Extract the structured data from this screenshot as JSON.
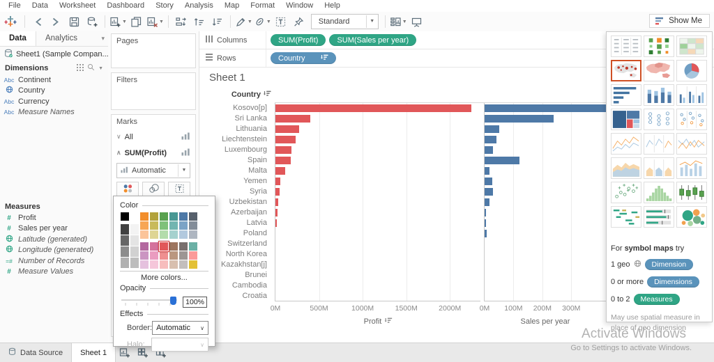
{
  "menu": {
    "items": [
      "File",
      "Data",
      "Worksheet",
      "Dashboard",
      "Story",
      "Analysis",
      "Map",
      "Format",
      "Window",
      "Help"
    ]
  },
  "toolbar": {
    "view_mode": "Standard",
    "show_me_label": "Show Me",
    "groups": [
      {
        "items": [
          {
            "icon": "undo-icon"
          },
          {
            "icon": "redo-icon"
          },
          {
            "icon": "save-icon"
          },
          {
            "icon": "add-data-icon"
          }
        ]
      },
      {
        "items": [
          {
            "icon": "new-worksheet-icon",
            "caret": true
          },
          {
            "icon": "duplicate-icon"
          },
          {
            "icon": "clear-sheet-icon",
            "caret": true
          }
        ]
      },
      {
        "items": [
          {
            "icon": "swap-rows-columns-icon"
          },
          {
            "icon": "sort-ascending-icon"
          },
          {
            "icon": "sort-descending-icon"
          }
        ]
      },
      {
        "items": [
          {
            "icon": "highlight-icon",
            "caret": true
          },
          {
            "icon": "format-icon",
            "caret": true
          },
          {
            "icon": "show-mark-labels-icon"
          },
          {
            "icon": "fix-axes-icon"
          }
        ]
      }
    ],
    "right_items": [
      {
        "icon": "show-hide-cards-icon",
        "caret": true
      },
      {
        "icon": "presentation-mode-icon"
      }
    ]
  },
  "data_pane": {
    "tabs": [
      {
        "label": "Data",
        "active": true
      },
      {
        "label": "Analytics",
        "active": false
      }
    ],
    "connection": "Sheet1 (Sample Compan...",
    "dimensions": {
      "header": "Dimensions",
      "fields": [
        {
          "icon": "abc",
          "label": "Continent",
          "generated": false
        },
        {
          "icon": "globe-blue",
          "label": "Country",
          "generated": false
        },
        {
          "icon": "abc",
          "label": "Currency",
          "generated": false
        },
        {
          "icon": "abc",
          "label": "Measure Names",
          "generated": true
        }
      ]
    },
    "measures": {
      "header": "Measures",
      "fields": [
        {
          "icon": "hash",
          "label": "Profit",
          "generated": false
        },
        {
          "icon": "hash",
          "label": "Sales per year",
          "generated": false
        },
        {
          "icon": "globe-green",
          "label": "Latitude (generated)",
          "generated": true
        },
        {
          "icon": "globe-green",
          "label": "Longitude (generated)",
          "generated": true
        },
        {
          "icon": "eq-hash",
          "label": "Number of Records",
          "generated": true
        },
        {
          "icon": "hash",
          "label": "Measure Values",
          "generated": true
        }
      ]
    }
  },
  "shelves": {
    "pages_label": "Pages",
    "filters_label": "Filters",
    "columns_label": "Columns",
    "rows_label": "Rows",
    "column_pills": [
      {
        "label": "SUM(Profit)",
        "type": "measure"
      },
      {
        "label": "SUM(Sales per year)",
        "type": "measure"
      }
    ],
    "row_pills": [
      {
        "label": "Country",
        "type": "dimension",
        "sorted": true
      }
    ]
  },
  "marks": {
    "header": "Marks",
    "rows": [
      {
        "label": "All",
        "state": "collapsed",
        "bold": false
      },
      {
        "label": "SUM(Profit)",
        "state": "expanded",
        "bold": true
      }
    ],
    "mark_type": "Automatic",
    "buttons": [
      {
        "label": "Color",
        "icon": "color-dots-icon"
      },
      {
        "label": "Size",
        "icon": "size-circles-icon"
      },
      {
        "label": "Label",
        "icon": "label-t-icon"
      }
    ]
  },
  "color_dialog": {
    "title": "Color",
    "more_colors": "More colors...",
    "opacity_label": "Opacity",
    "opacity_value": "100%",
    "opacity_percent": 100,
    "effects_label": "Effects",
    "border_label": "Border:",
    "border_value": "Automatic",
    "halo_label": "Halo:",
    "selected_color": "#e15759",
    "palette": {
      "gray_columns": [
        [
          "#000000",
          "#414141",
          "#666666",
          "#8c8c8c",
          "#b1b1b1"
        ],
        [
          "#ffffff",
          "#f3f3f3",
          "#e4e4e4",
          "#d1d1d1",
          "#bdbdbd"
        ]
      ],
      "color_columns": [
        {
          "top": [
            "#f28e2b",
            "#f7a654",
            "#fbc49a"
          ],
          "bottom": [
            "#b3689f",
            "#cb95c2",
            "#e5c1de"
          ]
        },
        {
          "top": [
            "#b2a23c",
            "#c8ba5a",
            "#ded594"
          ],
          "bottom": [
            "#d4729c",
            "#ea9cc0",
            "#f5c6da"
          ]
        },
        {
          "top": [
            "#59a14f",
            "#7fc17a",
            "#b3dcab"
          ],
          "bottom": [
            "#e15759",
            "#ef8f90",
            "#f7bdbd"
          ],
          "selected_bottom": 0
        },
        {
          "top": [
            "#499894",
            "#72b5b1",
            "#a5d1ce"
          ],
          "bottom": [
            "#9d7660",
            "#ba9780",
            "#d8bfae"
          ]
        },
        {
          "top": [
            "#4e79a7",
            "#7ba3c6",
            "#b2c9de"
          ],
          "bottom": [
            "#79706e",
            "#9d9694",
            "#c3bebc"
          ]
        },
        {
          "top": [
            "#57606c",
            "#838d99",
            "#aeb6c1"
          ],
          "bottom": [
            "#6bb0a5",
            "#fb9a99",
            "#e3c135"
          ]
        }
      ]
    }
  },
  "sheet": {
    "title": "Sheet 1",
    "row_header": "Country"
  },
  "chart_data": {
    "type": "bar",
    "orientation": "horizontal",
    "categories": [
      "Kosovo[p]",
      "Sri Lanka",
      "Lithuania",
      "Liechtenstein",
      "Luxembourg",
      "Spain",
      "Malta",
      "Yemen",
      "Syria",
      "Uzbekistan",
      "Azerbaijan",
      "Latvia",
      "Poland",
      "Switzerland",
      "North Korea",
      "Kazakhstan[j]",
      "Brunei",
      "Cambodia",
      "Croatia"
    ],
    "units": "M",
    "grid": true,
    "series": [
      {
        "name": "Profit",
        "color": "#e15759",
        "axis": {
          "title": "Profit",
          "ticks": [
            "0M",
            "500M",
            "1000M",
            "1500M",
            "2000M"
          ],
          "tick_values": [
            0,
            500,
            1000,
            1500,
            2000
          ],
          "max": 2350,
          "sorted": true
        },
        "values": [
          2250,
          400,
          270,
          230,
          185,
          175,
          110,
          55,
          50,
          30,
          25,
          12,
          0,
          0,
          0,
          0,
          0,
          0,
          0
        ]
      },
      {
        "name": "Sales per year",
        "color": "#4e79a7",
        "axis": {
          "title": "Sales per year",
          "ticks": [
            "0M",
            "100M",
            "200M",
            "300M"
          ],
          "tick_values": [
            0,
            100,
            200,
            300
          ],
          "max": 420,
          "sorted": false
        },
        "values": [
          500,
          240,
          50,
          40,
          28,
          120,
          16,
          27,
          28,
          17,
          4,
          4,
          8,
          0,
          0,
          0,
          0,
          0,
          0
        ]
      }
    ]
  },
  "show_me": {
    "thumbnails": [
      {
        "name": "text-table"
      },
      {
        "name": "heat-map"
      },
      {
        "name": "highlight-table"
      },
      {
        "name": "symbol-map",
        "selected": true
      },
      {
        "name": "filled-map"
      },
      {
        "name": "pie-chart"
      },
      {
        "name": "horizontal-bars"
      },
      {
        "name": "stacked-bars"
      },
      {
        "name": "side-by-side-bars"
      },
      {
        "name": "treemap"
      },
      {
        "name": "circle-views"
      },
      {
        "name": "side-by-side-circles"
      },
      {
        "name": "continuous-lines"
      },
      {
        "name": "discrete-lines"
      },
      {
        "name": "dual-lines"
      },
      {
        "name": "continuous-area"
      },
      {
        "name": "discrete-area"
      },
      {
        "name": "dual-combination"
      },
      {
        "name": "scatter-plot"
      },
      {
        "name": "histogram"
      },
      {
        "name": "box-and-whisker"
      },
      {
        "name": "gantt"
      },
      {
        "name": "bullet-graph"
      },
      {
        "name": "packed-bubbles"
      }
    ],
    "hint": {
      "prefix": "For ",
      "bold": "symbol maps",
      "suffix": " try"
    },
    "requirements": [
      {
        "text": "1 geo",
        "globe": true,
        "badge": "Dimension",
        "color": "#5a93bb"
      },
      {
        "text": "0 or more",
        "globe": false,
        "badge": "Dimensions",
        "color": "#5a93bb"
      },
      {
        "text": "0 to 2",
        "globe": false,
        "badge": "Measures",
        "color": "#2fa585"
      }
    ],
    "note": "May use spatial measure in place of geo dimension"
  },
  "bottom_bar": {
    "tabs": [
      {
        "label": "Data Source",
        "icon": "datasource-icon",
        "active": false
      },
      {
        "label": "Sheet 1",
        "active": true
      }
    ],
    "new_buttons": [
      {
        "icon": "new-worksheet-tab-icon"
      },
      {
        "icon": "new-dashboard-tab-icon"
      },
      {
        "icon": "new-story-tab-icon"
      }
    ]
  },
  "watermark": {
    "line1": "Activate Windows",
    "line2": "Go to Settings to activate Windows."
  },
  "colors": {
    "measure_pill": "#2fa585",
    "dimension_pill": "#5a93bb",
    "profit_bar": "#e15759",
    "sales_bar": "#4e79a7",
    "selected_thumb_border": "#cf5025"
  }
}
